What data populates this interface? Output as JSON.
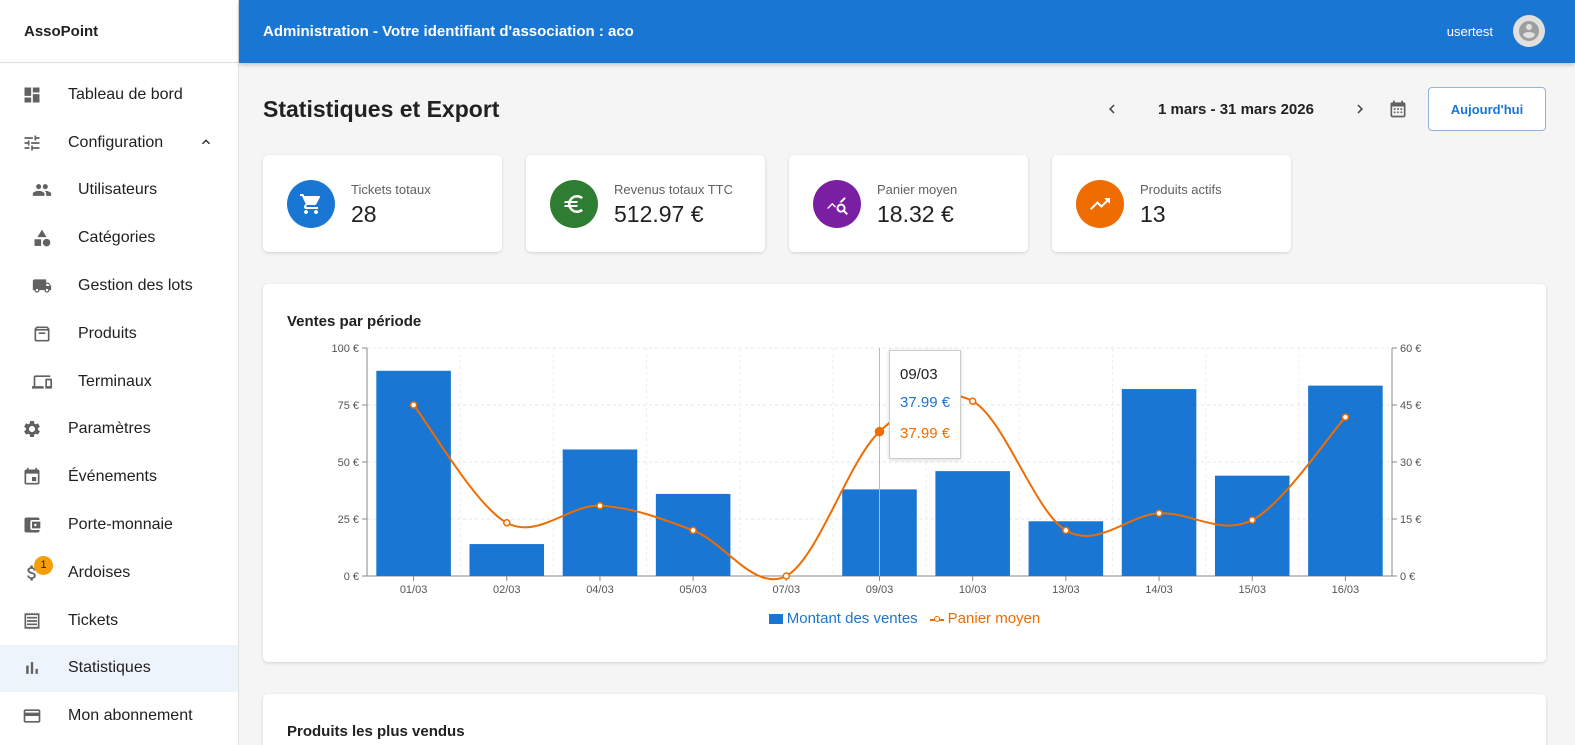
{
  "sidebar": {
    "brand": "AssoPoint",
    "items": [
      {
        "label": "Tableau de bord",
        "icon": "dashboard-icon"
      },
      {
        "label": "Configuration",
        "icon": "tune-icon"
      },
      {
        "label": "Utilisateurs",
        "icon": "users-icon"
      },
      {
        "label": "Catégories",
        "icon": "shapes-icon"
      },
      {
        "label": "Gestion des lots",
        "icon": "truck-icon"
      },
      {
        "label": "Produits",
        "icon": "archive-icon"
      },
      {
        "label": "Terminaux",
        "icon": "devices-icon"
      },
      {
        "label": "Paramètres",
        "icon": "gear-icon"
      },
      {
        "label": "Événements",
        "icon": "calendar-event-icon"
      },
      {
        "label": "Porte-monnaie",
        "icon": "wallet-icon"
      },
      {
        "label": "Ardoises",
        "icon": "dollar-icon",
        "badge": "1"
      },
      {
        "label": "Tickets",
        "icon": "receipt-icon"
      },
      {
        "label": "Statistiques",
        "icon": "bar-chart-icon"
      },
      {
        "label": "Mon abonnement",
        "icon": "credit-card-icon"
      }
    ]
  },
  "topbar": {
    "title": "Administration - Votre identifiant d'association : aco",
    "username": "usertest"
  },
  "page": {
    "title": "Statistiques et Export",
    "date_range": "1 mars - 31 mars 2026",
    "today_label": "Aujourd'hui"
  },
  "stats": [
    {
      "label": "Tickets totaux",
      "value": "28",
      "color": "#1976d2",
      "icon": "cart-icon"
    },
    {
      "label": "Revenus totaux TTC",
      "value": "512.97 €",
      "color": "#2e7d32",
      "icon": "euro-icon"
    },
    {
      "label": "Panier moyen",
      "value": "18.32 €",
      "color": "#7b1fa2",
      "icon": "query-stats-icon"
    },
    {
      "label": "Produits actifs",
      "value": "13",
      "color": "#ef6c00",
      "icon": "trending-up-icon"
    }
  ],
  "chart": {
    "title": "Ventes par période",
    "tooltip": {
      "date": "09/03",
      "value1": "37.99 €",
      "value2": "37.99 €"
    }
  },
  "chart_data": {
    "type": "bar",
    "categories": [
      "01/03",
      "02/03",
      "04/03",
      "05/03",
      "07/03",
      "09/03",
      "10/03",
      "13/03",
      "14/03",
      "15/03",
      "16/03"
    ],
    "series": [
      {
        "name": "Montant des ventes",
        "type": "bar",
        "axis": "left",
        "values": [
          90,
          14,
          55.5,
          36,
          0,
          37.99,
          46,
          24,
          82,
          44,
          83.5
        ]
      },
      {
        "name": "Panier moyen",
        "type": "line",
        "axis": "right",
        "values": [
          45,
          14,
          18.5,
          12,
          0,
          37.99,
          46,
          12,
          16.5,
          14.7,
          41.8
        ]
      }
    ],
    "y_left": {
      "min": 0,
      "max": 100,
      "ticks": [
        "0 €",
        "25 €",
        "50 €",
        "75 €",
        "100 €"
      ]
    },
    "y_right": {
      "min": 0,
      "max": 60,
      "ticks": [
        "0 €",
        "15 €",
        "30 €",
        "45 €",
        "60 €"
      ]
    },
    "legend": "bottom",
    "colors": {
      "bar": "#1976d2",
      "line": "#ef6c00"
    }
  },
  "bottom_panel": {
    "title": "Produits les plus vendus"
  }
}
